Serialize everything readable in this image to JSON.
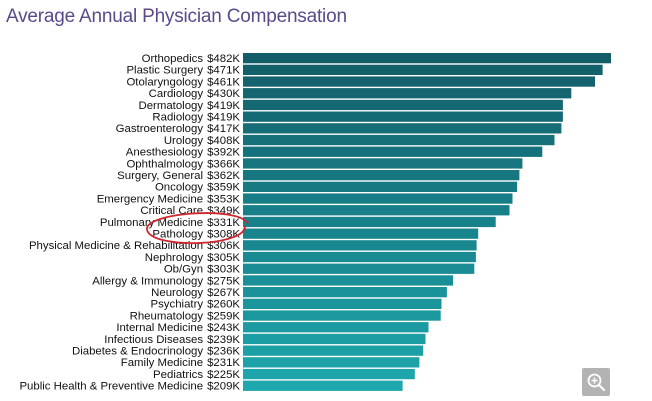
{
  "page": {
    "title": "Average Annual Physician Compensation"
  },
  "icons": {
    "zoom": "zoom-in-icon"
  },
  "colors": {
    "bar_top": "#125d68",
    "bar_bottom": "#1ea7ad",
    "highlight": "#d0262d"
  },
  "chart_data": {
    "type": "bar",
    "orientation": "horizontal",
    "title": "Average Annual Physician Compensation",
    "xlabel": "",
    "ylabel": "",
    "xlim": [
      0,
      510
    ],
    "grid": false,
    "legend": "none",
    "highlighted_category": "Pathology",
    "categories": [
      "Orthopedics",
      "Plastic Surgery",
      "Otolaryngology",
      "Cardiology",
      "Dermatology",
      "Radiology",
      "Gastroenterology",
      "Urology",
      "Anesthesiology",
      "Ophthalmology",
      "Surgery, General",
      "Oncology",
      "Emergency Medicine",
      "Critical Care",
      "Pulmonary Medicine",
      "Pathology",
      "Physical Medicine & Rehabilitation",
      "Nephrology",
      "Ob/Gyn",
      "Allergy & Immunology",
      "Neurology",
      "Psychiatry",
      "Rheumatology",
      "Internal Medicine",
      "Infectious Diseases",
      "Diabetes & Endocrinology",
      "Family Medicine",
      "Pediatrics",
      "Public Health & Preventive Medicine"
    ],
    "values": [
      482,
      471,
      461,
      430,
      419,
      419,
      417,
      408,
      392,
      366,
      362,
      359,
      353,
      349,
      331,
      308,
      306,
      305,
      303,
      275,
      267,
      260,
      259,
      243,
      239,
      236,
      231,
      225,
      209
    ],
    "value_labels": [
      "$482K",
      "$471K",
      "$461K",
      "$430K",
      "$419K",
      "$419K",
      "$417K",
      "$408K",
      "$392K",
      "$366K",
      "$362K",
      "$359K",
      "$353K",
      "$349K",
      "$331K",
      "$308K",
      "$306K",
      "$305K",
      "$303K",
      "$275K",
      "$267K",
      "$260K",
      "$259K",
      "$243K",
      "$239K",
      "$236K",
      "$231K",
      "$225K",
      "$209K"
    ]
  }
}
